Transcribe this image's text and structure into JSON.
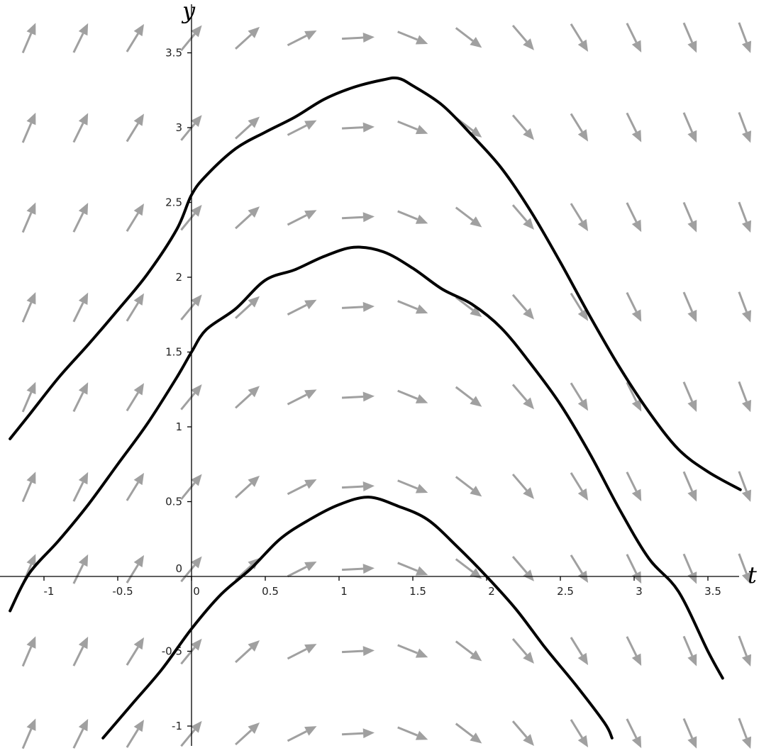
{
  "chart_data": {
    "type": "line",
    "subtype": "direction-field",
    "title": "",
    "xlabel": "t",
    "ylabel": "y",
    "xlim": [
      -1.23,
      3.72
    ],
    "ylim": [
      -1.13,
      3.65
    ],
    "x_ticks": [
      "-1",
      "-0.5",
      "0",
      "0.5",
      "1",
      "1.5",
      "2",
      "2.5",
      "3",
      "3.5"
    ],
    "y_ticks": [
      "-1",
      "-0.5",
      "0",
      "0.5",
      "1",
      "1.5",
      "2",
      "2.5",
      "3",
      "3.5"
    ],
    "grid": false,
    "field_color": "#a0a0a0",
    "curve_color": "#000000",
    "field": {
      "description_of_slopes_by_t": {
        "t": [
          -1.1,
          -0.75,
          -0.38,
          0,
          0.38,
          0.75,
          1.13,
          1.5,
          1.88,
          2.25,
          2.63,
          3.0,
          3.38,
          3.75
        ],
        "slope": [
          2.3,
          2.0,
          1.6,
          1.2,
          0.9,
          0.5,
          0.05,
          -0.4,
          -0.75,
          -1.15,
          -1.6,
          -2.0,
          -2.3,
          -2.6
        ]
      },
      "y_rows": [
        -1.05,
        -0.5,
        0.05,
        0.6,
        1.2,
        1.8,
        2.4,
        3.0,
        3.6
      ]
    },
    "series": [
      {
        "x": [
          -1.23,
          -1.1,
          -0.9,
          -0.7,
          -0.5,
          -0.3,
          -0.1,
          0,
          0.1,
          0.3,
          0.5,
          0.7,
          0.9,
          1.1,
          1.3,
          1.4,
          1.5,
          1.7,
          1.9,
          2.1,
          2.3,
          2.5,
          2.7,
          2.9,
          3.1,
          3.3,
          3.5,
          3.72
        ],
        "y": [
          0.92,
          1.08,
          1.33,
          1.55,
          1.78,
          2.02,
          2.32,
          2.55,
          2.68,
          2.86,
          2.97,
          3.07,
          3.19,
          3.27,
          3.32,
          3.33,
          3.28,
          3.15,
          2.95,
          2.73,
          2.44,
          2.1,
          1.74,
          1.4,
          1.1,
          0.85,
          0.7,
          0.58
        ]
      },
      {
        "x": [
          -1.23,
          -1.1,
          -0.9,
          -0.7,
          -0.5,
          -0.3,
          -0.1,
          0,
          0.1,
          0.3,
          0.5,
          0.7,
          0.9,
          1.1,
          1.3,
          1.5,
          1.7,
          1.9,
          2.1,
          2.3,
          2.5,
          2.7,
          2.9,
          3.1,
          3.3,
          3.5,
          3.6
        ],
        "y": [
          -0.23,
          0.02,
          0.24,
          0.48,
          0.75,
          1.02,
          1.33,
          1.5,
          1.65,
          1.79,
          1.98,
          2.05,
          2.14,
          2.2,
          2.17,
          2.06,
          1.92,
          1.82,
          1.66,
          1.42,
          1.15,
          0.82,
          0.45,
          0.12,
          -0.1,
          -0.5,
          -0.68
        ]
      },
      {
        "x": [
          -0.6,
          -0.4,
          -0.2,
          0,
          0.2,
          0.4,
          0.6,
          0.8,
          1.0,
          1.2,
          1.4,
          1.6,
          1.8,
          2.0,
          2.2,
          2.4,
          2.6,
          2.8,
          2.85
        ],
        "y": [
          -1.08,
          -0.85,
          -0.62,
          -0.35,
          -0.12,
          0.05,
          0.25,
          0.38,
          0.48,
          0.53,
          0.47,
          0.38,
          0.2,
          0.0,
          -0.22,
          -0.48,
          -0.72,
          -0.98,
          -1.08
        ]
      }
    ]
  }
}
